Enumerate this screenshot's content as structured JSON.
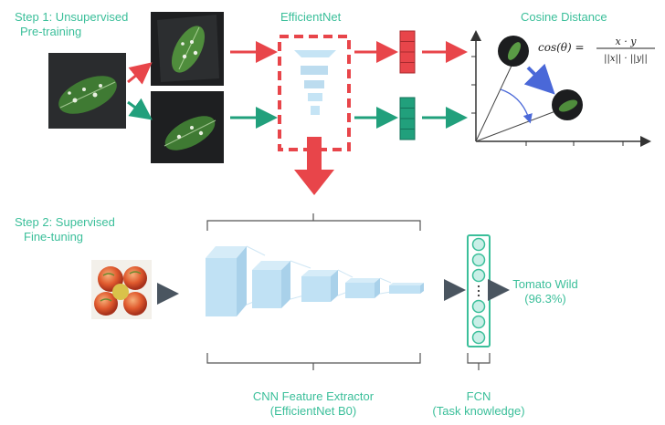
{
  "step1": {
    "line1": "Step 1: Unsupervised",
    "line2": "Pre-training"
  },
  "step2": {
    "line1": "Step 2: Supervised",
    "line2": "Fine-tuning"
  },
  "efficientnet_label": "EfficientNet",
  "cosine_label": "Cosine Distance",
  "formula": {
    "lhs": "cos(θ) =",
    "numerator": "x · y",
    "denominator": "||x|| · ||y||"
  },
  "prediction": {
    "class": "Tomato Wild",
    "confidence": "(96.3%)"
  },
  "cnn_label": {
    "line1": "CNN Feature Extractor",
    "line2": "(EfficientNet B0)"
  },
  "fcn_label": {
    "line1": "FCN",
    "line2": "(Task knowledge)"
  },
  "colors": {
    "teal_text": "#3bbf9a",
    "red": "#e8454a",
    "green": "#21a07c",
    "blue_arrow": "#4a68d8",
    "cnn_block": "#bfe0f2",
    "fcn_fill": "#c9efe7",
    "fcn_border": "#3bbf9a",
    "dark_arrow": "#4a5560"
  }
}
